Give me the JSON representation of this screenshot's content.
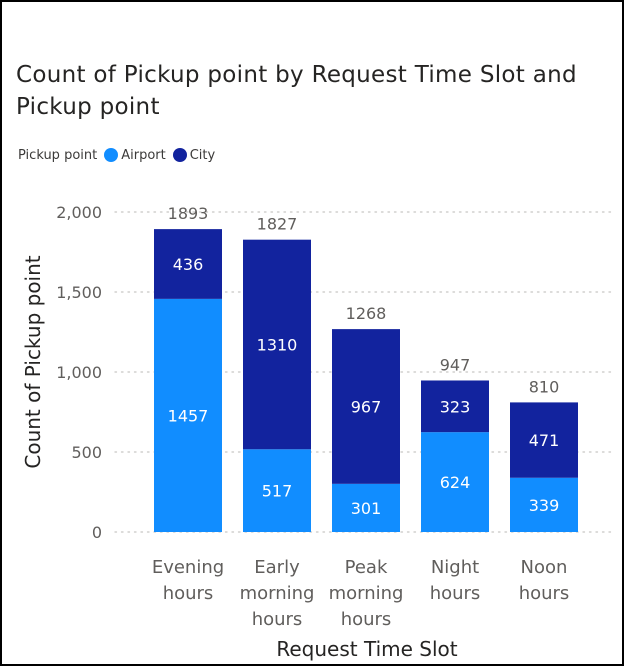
{
  "title": "Count of Pickup point by Request Time Slot and Pickup point",
  "legend": {
    "label": "Pickup point",
    "airport": "Airport",
    "city": "City"
  },
  "colors": {
    "Airport": "#118dff",
    "City": "#12239e",
    "axis_text": "#605e5c",
    "grid": "#c8c6c4"
  },
  "chart_data": {
    "type": "bar",
    "stacked": true,
    "title": "Count of Pickup point by Request Time Slot and Pickup point",
    "xlabel": "Request Time Slot",
    "ylabel": "Count of Pickup point",
    "ylim": [
      0,
      2000
    ],
    "yticks": [
      0,
      500,
      1000,
      1500,
      2000
    ],
    "ytick_labels": [
      "0",
      "500",
      "1,000",
      "1,500",
      "2,000"
    ],
    "grid": true,
    "legend_position": "top-left",
    "categories": [
      [
        "Evening",
        "hours"
      ],
      [
        "Early",
        "morning",
        "hours"
      ],
      [
        "Peak",
        "morning",
        "hours"
      ],
      [
        "Night",
        "hours"
      ],
      [
        "Noon",
        "hours"
      ]
    ],
    "series": [
      {
        "name": "Airport",
        "values": [
          1457,
          517,
          301,
          624,
          339
        ]
      },
      {
        "name": "City",
        "values": [
          436,
          1310,
          967,
          323,
          471
        ]
      }
    ],
    "totals": [
      1893,
      1827,
      1268,
      947,
      810
    ]
  }
}
